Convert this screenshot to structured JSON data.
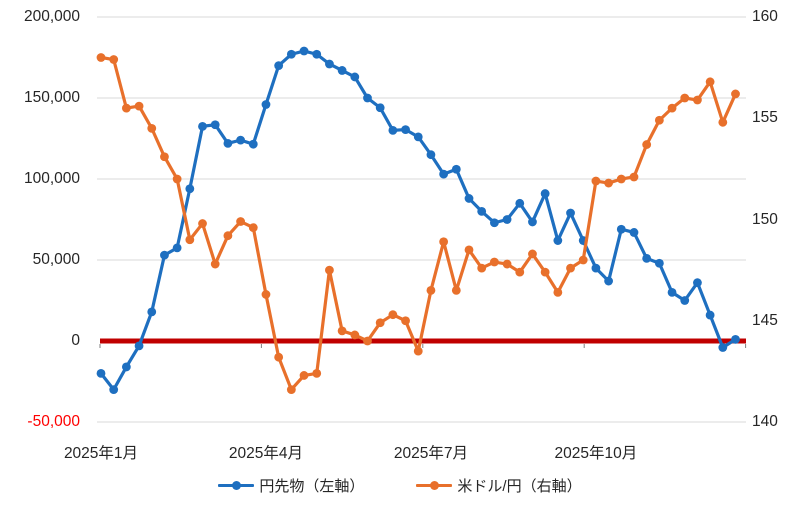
{
  "chart_data": {
    "type": "line",
    "title": "",
    "background": "#FFFFFF",
    "grid": {
      "show": true,
      "color": "#D9D9D9"
    },
    "x_unit": "week",
    "x": [
      1,
      2,
      3,
      4,
      5,
      6,
      7,
      8,
      9,
      10,
      11,
      12,
      13,
      14,
      15,
      16,
      17,
      18,
      19,
      20,
      21,
      22,
      23,
      24,
      25,
      26,
      27,
      28,
      29,
      30,
      31,
      32,
      33,
      34,
      35,
      36,
      37,
      38,
      39,
      40,
      41,
      42,
      43,
      44,
      45,
      46,
      47,
      48,
      49,
      50,
      51
    ],
    "x_axis": {
      "tick_labels": [
        "2025年1月",
        "2025年4月",
        "2025年7月",
        "2025年10月"
      ],
      "tick_week_indices": [
        1,
        14,
        27,
        40
      ],
      "minor_tick_color": "#7F7F7F"
    },
    "left_axis": {
      "min": -50000,
      "max": 200000,
      "interval": 50000,
      "tick_values": [
        200000,
        150000,
        100000,
        50000,
        0,
        -50000
      ],
      "tick_labels": [
        "200,000",
        "150,000",
        "100,000",
        "50,000",
        "0",
        "-50,000"
      ],
      "label_color": "#262626",
      "negative_label_color": "#FF0000"
    },
    "right_axis": {
      "min": 140,
      "max": 160,
      "interval": 5,
      "tick_values": [
        160,
        155,
        150,
        145,
        140
      ],
      "tick_labels": [
        "160",
        "155",
        "150",
        "145",
        "140"
      ],
      "label_color": "#262626"
    },
    "zero_line": {
      "axis": "left",
      "value": 0,
      "color": "#C00000",
      "thickness": 5
    },
    "legend_position": "bottom",
    "series": [
      {
        "name": "円先物（左軸）",
        "axis": "left",
        "color": "#1E6FC0",
        "marker": "circle",
        "values": [
          -20000,
          -30000,
          -16000,
          -3000,
          18000,
          53000,
          57500,
          94000,
          132500,
          133500,
          122000,
          124000,
          121500,
          146000,
          170000,
          177000,
          179000,
          177000,
          171000,
          167000,
          163000,
          150000,
          144000,
          130000,
          130500,
          126000,
          115000,
          103000,
          106000,
          88000,
          80000,
          73000,
          75000,
          85000,
          73500,
          91000,
          62000,
          79000,
          62000,
          45000,
          37000,
          69000,
          67000,
          51000,
          48000,
          30000,
          25000,
          36000,
          16000,
          -4000,
          1000
        ]
      },
      {
        "name": "米ドル/円（右軸）",
        "axis": "right",
        "color": "#E8702B",
        "marker": "circle",
        "values": [
          158.0,
          157.9,
          155.5,
          155.6,
          154.5,
          153.1,
          152.0,
          149.0,
          149.8,
          147.8,
          149.2,
          149.9,
          149.6,
          146.3,
          143.2,
          141.6,
          142.3,
          142.4,
          147.5,
          144.5,
          144.3,
          144.0,
          144.9,
          145.3,
          145.0,
          143.5,
          146.5,
          148.9,
          146.5,
          148.5,
          147.6,
          147.9,
          147.8,
          147.4,
          148.3,
          147.4,
          146.4,
          147.6,
          148.0,
          151.9,
          151.8,
          152.0,
          152.1,
          153.7,
          154.9,
          155.5,
          156.0,
          155.9,
          156.8,
          154.8,
          156.2
        ]
      }
    ]
  }
}
